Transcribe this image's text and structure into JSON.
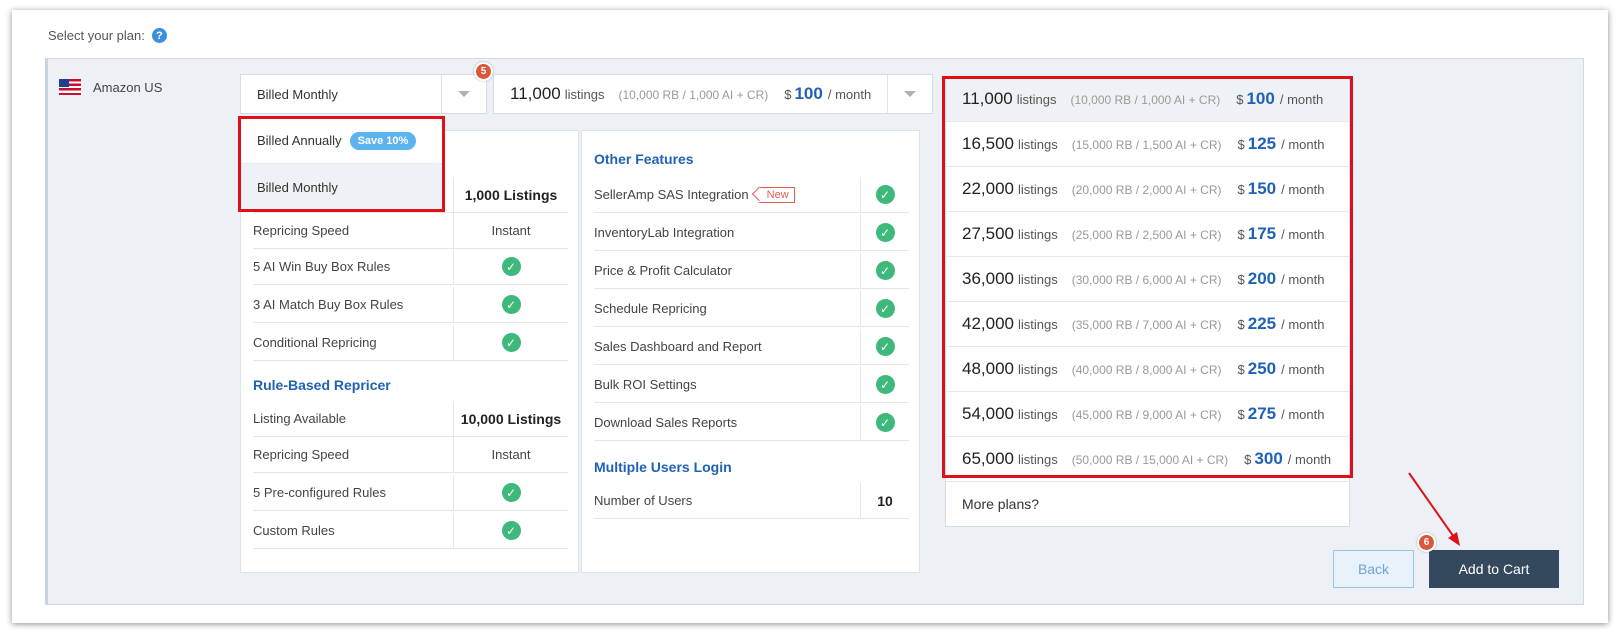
{
  "header": {
    "select_plan_label": "Select your plan:",
    "help_glyph": "?"
  },
  "marketplace": {
    "name": "Amazon US",
    "flag_icon": "us-flag-icon"
  },
  "billing": {
    "current": "Billed Monthly",
    "options": [
      {
        "label": "Billed Annually",
        "badge": "Save 10%"
      },
      {
        "label": "Billed Monthly"
      }
    ]
  },
  "steps": {
    "billing_step": "5",
    "cart_step": "6"
  },
  "selected_plan": {
    "listings": "11,000",
    "unit": "listings",
    "detail": "(10,000 RB / 1,000 AI + CR)",
    "currency": "$",
    "price": "100",
    "per": "/ month"
  },
  "plans": [
    {
      "listings": "11,000",
      "unit": "listings",
      "detail": "(10,000 RB / 1,000 AI + CR)",
      "currency": "$",
      "price": "100",
      "per": "/ month"
    },
    {
      "listings": "16,500",
      "unit": "listings",
      "detail": "(15,000 RB / 1,500 AI + CR)",
      "currency": "$",
      "price": "125",
      "per": "/ month"
    },
    {
      "listings": "22,000",
      "unit": "listings",
      "detail": "(20,000 RB / 2,000 AI + CR)",
      "currency": "$",
      "price": "150",
      "per": "/ month"
    },
    {
      "listings": "27,500",
      "unit": "listings",
      "detail": "(25,000 RB / 2,500 AI + CR)",
      "currency": "$",
      "price": "175",
      "per": "/ month"
    },
    {
      "listings": "36,000",
      "unit": "listings",
      "detail": "(30,000 RB / 6,000 AI + CR)",
      "currency": "$",
      "price": "200",
      "per": "/ month"
    },
    {
      "listings": "42,000",
      "unit": "listings",
      "detail": "(35,000 RB / 7,000 AI + CR)",
      "currency": "$",
      "price": "225",
      "per": "/ month"
    },
    {
      "listings": "48,000",
      "unit": "listings",
      "detail": "(40,000 RB / 8,000 AI + CR)",
      "currency": "$",
      "price": "250",
      "per": "/ month"
    },
    {
      "listings": "54,000",
      "unit": "listings",
      "detail": "(45,000 RB / 9,000 AI + CR)",
      "currency": "$",
      "price": "275",
      "per": "/ month"
    },
    {
      "listings": "65,000",
      "unit": "listings",
      "detail": "(50,000 RB / 15,000 AI + CR)",
      "currency": "$",
      "price": "300",
      "per": "/ month"
    }
  ],
  "more_plans": "More plans?",
  "ai_repricer": {
    "listing_value": "1,000 Listings",
    "rows": [
      {
        "label": "Repricing Speed",
        "value": "Instant"
      },
      {
        "label": "5 AI Win Buy Box Rules"
      },
      {
        "label": "3 AI Match Buy Box Rules"
      },
      {
        "label": "Conditional Repricing"
      }
    ]
  },
  "rule_based": {
    "title": "Rule-Based Repricer",
    "rows": [
      {
        "label": "Listing Available",
        "value": "10,000 Listings"
      },
      {
        "label": "Repricing Speed",
        "value": "Instant"
      },
      {
        "label": "5 Pre-configured Rules"
      },
      {
        "label": "Custom Rules"
      }
    ]
  },
  "other_features": {
    "title": "Other Features",
    "new_tag": "New",
    "rows": [
      {
        "label": "SellerAmp SAS Integration"
      },
      {
        "label": "InventoryLab Integration"
      },
      {
        "label": "Price & Profit Calculator"
      },
      {
        "label": "Schedule Repricing"
      },
      {
        "label": "Sales Dashboard and Report"
      },
      {
        "label": "Bulk ROI Settings"
      },
      {
        "label": "Download Sales Reports"
      }
    ]
  },
  "multi_users": {
    "title": "Multiple Users Login",
    "rows": [
      {
        "label": "Number of Users",
        "value": "10"
      }
    ]
  },
  "check_glyph": "✓",
  "buttons": {
    "back": "Back",
    "add_to_cart": "Add to Cart"
  },
  "colors": {
    "accent": "#1f62b5",
    "highlight_box": "#e0101a",
    "check": "#3fb87b",
    "cart_button": "#34495e"
  }
}
